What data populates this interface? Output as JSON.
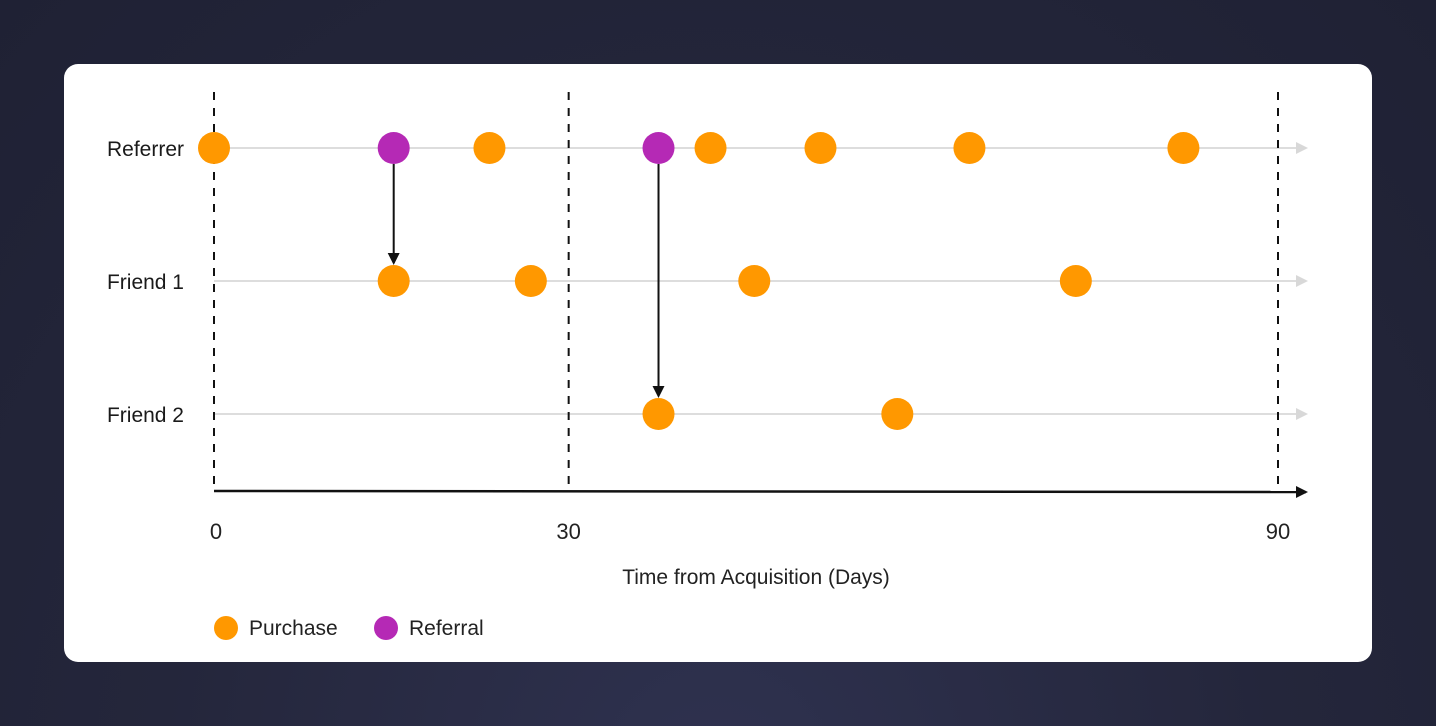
{
  "chart_data": {
    "type": "scatter",
    "title": "",
    "xlabel": "Time from Acquisition (Days)",
    "ylabel": "",
    "xlim": [
      0,
      90
    ],
    "x_ticks": [
      0,
      30,
      90
    ],
    "x_tick_labels": [
      "0",
      "30",
      "90"
    ],
    "dashed_reference_lines": [
      0,
      30,
      90
    ],
    "rows": [
      "Referrer",
      "Friend 1",
      "Friend 2"
    ],
    "legend": {
      "placement": "bottom-left",
      "items": [
        {
          "label": "Purchase",
          "color": "#ff9800"
        },
        {
          "label": "Referral",
          "color": "#b529b5"
        }
      ]
    },
    "series": [
      {
        "name": "Purchase",
        "color": "#ff9800",
        "points": [
          {
            "row": "Referrer",
            "x": 0
          },
          {
            "row": "Referrer",
            "x": 23.3
          },
          {
            "row": "Referrer",
            "x": 42
          },
          {
            "row": "Referrer",
            "x": 51.3
          },
          {
            "row": "Referrer",
            "x": 63.9
          },
          {
            "row": "Referrer",
            "x": 82
          },
          {
            "row": "Friend 1",
            "x": 15.2
          },
          {
            "row": "Friend 1",
            "x": 26.8
          },
          {
            "row": "Friend 1",
            "x": 45.7
          },
          {
            "row": "Friend 1",
            "x": 72.9
          },
          {
            "row": "Friend 2",
            "x": 37.6
          },
          {
            "row": "Friend 2",
            "x": 57.8
          }
        ]
      },
      {
        "name": "Referral",
        "color": "#b529b5",
        "points": [
          {
            "row": "Referrer",
            "x": 15.2
          },
          {
            "row": "Referrer",
            "x": 37.6
          }
        ]
      }
    ],
    "referral_links": [
      {
        "x": 15.2,
        "from": "Referrer",
        "to": "Friend 1"
      },
      {
        "x": 37.6,
        "from": "Referrer",
        "to": "Friend 2"
      }
    ]
  }
}
